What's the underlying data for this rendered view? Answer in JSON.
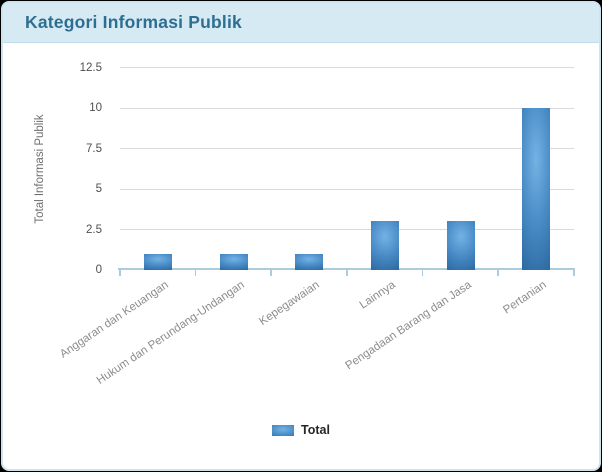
{
  "header": {
    "title": "Kategori Informasi Publik"
  },
  "chart_data": {
    "type": "bar",
    "title": "Kategori Informasi Publik",
    "categories": [
      "Anggaran dan Keuangan",
      "Hukum dan Perundang-Undangan",
      "Kepegawaian",
      "Lainnya",
      "Pengadaan Barang dan Jasa",
      "Pertanian"
    ],
    "series": [
      {
        "name": "Total",
        "values": [
          1,
          1,
          1,
          3,
          3,
          10
        ]
      }
    ],
    "xlabel": "",
    "ylabel": "Total Informasi Publik",
    "ylim": [
      0,
      12.5
    ],
    "yticks": [
      0,
      2.5,
      5,
      7.5,
      10,
      12.5
    ],
    "grid": true,
    "legend_position": "bottom"
  },
  "colors": {
    "page_bg": "#000000",
    "card_border": "#cde4f0",
    "header_bg": "#d6eaf4",
    "header_border": "#c3dce9",
    "header_text": "#2e6e90",
    "accent_bar_light": "#74b2e4",
    "accent_bar_mid": "#4a8cc7",
    "accent_bar_dark": "#2e6ba3",
    "axis_line": "#aecbdd",
    "gridline": "#d9d9d9",
    "y_tick_text": "#4f4f4f",
    "x_label_text": "#8c8c8c",
    "axis_title_text": "#6e6e6e",
    "legend_text": "#262626"
  }
}
